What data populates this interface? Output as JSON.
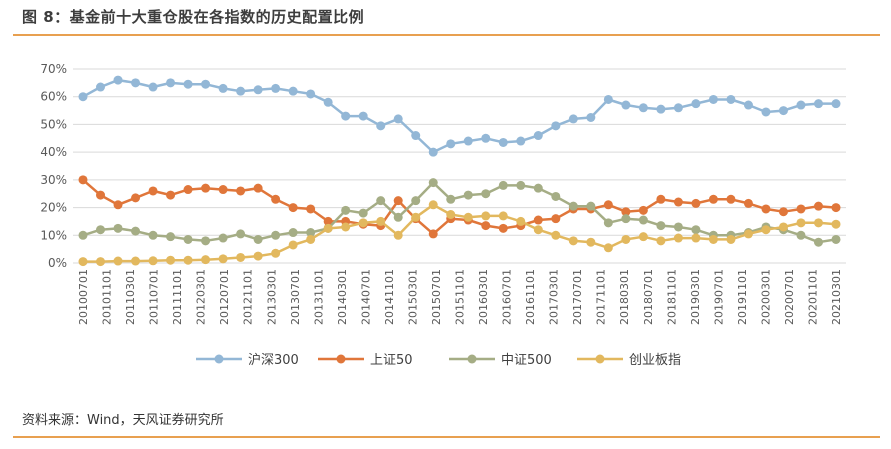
{
  "figure": {
    "title": "图 8：基金前十大重仓股在各指数的历史配置比例",
    "source": "资料来源：Wind，天风证券研究所"
  },
  "chart_data": {
    "type": "line",
    "title": "图 8：基金前十大重仓股在各指数的历史配置比例",
    "xlabel": "",
    "ylabel": "",
    "ylim": [
      0,
      70
    ],
    "yticks": [
      "0%",
      "10%",
      "20%",
      "30%",
      "40%",
      "50%",
      "60%",
      "70%"
    ],
    "grid": true,
    "legend_position": "bottom",
    "x": [
      "20100701",
      "20101001",
      "20110101",
      "20110401",
      "20110701",
      "20111001",
      "20120101",
      "20120401",
      "20120701",
      "20121001",
      "20130101",
      "20130401",
      "20130701",
      "20131001",
      "20140101",
      "20140401",
      "20140701",
      "20141001",
      "20150101",
      "20150401",
      "20150701",
      "20151001",
      "20160101",
      "20160401",
      "20160701",
      "20161001",
      "20170101",
      "20170401",
      "20170701",
      "20171001",
      "20180101",
      "20180401",
      "20180701",
      "20181001",
      "20190101",
      "20190401",
      "20190701",
      "20191001",
      "20200101",
      "20200401",
      "20200701",
      "20201001",
      "20210101",
      "20210301"
    ],
    "x_tick_labels": [
      "20100701",
      "20101101",
      "20110301",
      "20110701",
      "20111101",
      "20120301",
      "20120701",
      "20121101",
      "20130301",
      "20130701",
      "20131101",
      "20140301",
      "20140701",
      "20141101",
      "20150301",
      "20150701",
      "20151101",
      "20160301",
      "20160701",
      "20161101",
      "20170301",
      "20170701",
      "20171101",
      "20180301",
      "20180701",
      "20181101",
      "20190301",
      "20190701",
      "20191101",
      "20200301",
      "20200701",
      "20201101",
      "20210301"
    ],
    "series": [
      {
        "name": "沪深300",
        "color": "#93b7d6",
        "values": [
          60,
          63.5,
          66,
          65,
          63.5,
          65,
          64.5,
          64.5,
          63,
          62,
          62.5,
          63,
          62,
          61,
          58,
          53,
          53,
          49.5,
          52,
          46,
          40,
          43,
          44,
          45,
          43.5,
          44,
          46,
          49.5,
          52,
          52.5,
          59,
          57,
          56,
          55.5,
          56,
          57.5,
          59,
          59,
          57,
          54.5,
          55,
          57,
          57.5,
          57.5
        ]
      },
      {
        "name": "上证50",
        "color": "#e0763a",
        "values": [
          30,
          24.5,
          21,
          23.5,
          26,
          24.5,
          26.5,
          27,
          26.5,
          26,
          27,
          23,
          20,
          19.5,
          15,
          15,
          14,
          13.5,
          22.5,
          16,
          10.5,
          16,
          15.5,
          13.5,
          12.5,
          13.5,
          15.5,
          16,
          19.5,
          19.5,
          21,
          18.5,
          19,
          23,
          22,
          21.5,
          23,
          23,
          21.5,
          19.5,
          18.5,
          19.5,
          20.5,
          20
        ]
      },
      {
        "name": "中证500",
        "color": "#a5ad85",
        "values": [
          10,
          12,
          12.5,
          11.5,
          10,
          9.5,
          8.5,
          8,
          9,
          10.5,
          8.5,
          10,
          11,
          11,
          12.5,
          19,
          18,
          22.5,
          16.5,
          22.5,
          29,
          23,
          24.5,
          25,
          28,
          28,
          27,
          24,
          20.5,
          20.5,
          14.5,
          16,
          15.5,
          13.5,
          13,
          12,
          10,
          10,
          11,
          13,
          12,
          10,
          7.5,
          8.5
        ]
      },
      {
        "name": "创业板指",
        "color": "#e2b85e",
        "values": [
          0.5,
          0.5,
          0.7,
          0.7,
          0.8,
          1,
          1,
          1.2,
          1.5,
          2,
          2.5,
          3.5,
          6.5,
          8.5,
          12.5,
          13,
          14.5,
          15,
          10,
          16.5,
          21,
          17.5,
          16.5,
          17,
          17,
          15,
          12,
          10,
          8,
          7.5,
          5.5,
          8.5,
          9.5,
          8,
          9,
          9,
          8.5,
          8.5,
          10.5,
          12,
          13,
          14.5,
          14.5,
          14
        ]
      }
    ]
  }
}
